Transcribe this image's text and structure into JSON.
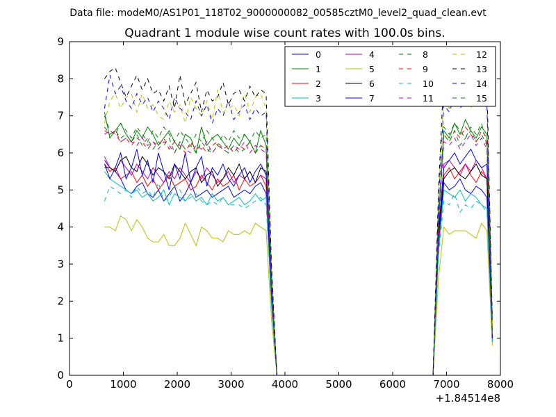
{
  "figure": {
    "suptitle": "Data file: modeM0/AS1P01_118T02_9000000082_00585cztM0_level2_quad_clean.evt"
  },
  "chart_data": {
    "type": "line",
    "title": "Quadrant 1 module wise count rates with 100.0s bins.",
    "xlabel": "",
    "ylabel": "",
    "x_offset_label": "+1.84514e8",
    "xlim": [
      0,
      8000
    ],
    "ylim": [
      0,
      9
    ],
    "xticks": [
      0,
      1000,
      2000,
      3000,
      4000,
      5000,
      6000,
      7000,
      8000
    ],
    "yticks": [
      0,
      1,
      2,
      3,
      4,
      5,
      6,
      7,
      8,
      9
    ],
    "legend_position": "top-right",
    "legend_columns": 4,
    "x": [
      650,
      750,
      850,
      950,
      1050,
      1150,
      1250,
      1350,
      1450,
      1550,
      1650,
      1750,
      1850,
      1950,
      2050,
      2150,
      2250,
      2350,
      2450,
      2550,
      2650,
      2750,
      2850,
      2950,
      3050,
      3150,
      3250,
      3350,
      3450,
      3550,
      3650,
      3750,
      3850,
      6750,
      6850,
      6950,
      7050,
      7150,
      7250,
      7350,
      7450,
      7550,
      7650,
      7750,
      7850
    ],
    "series": [
      {
        "name": "0",
        "color": "#0000ff",
        "dash": "solid",
        "values": [
          5.8,
          5.6,
          5.5,
          5.3,
          5.0,
          4.9,
          5.1,
          5.2,
          4.9,
          4.8,
          5.0,
          4.7,
          4.9,
          5.1,
          4.7,
          4.9,
          5.2,
          4.8,
          4.9,
          5.0,
          4.8,
          4.9,
          5.0,
          5.1,
          4.8,
          4.9,
          5.0,
          4.9,
          5.1,
          5.2,
          4.9,
          2.0,
          0.0,
          0.0,
          3.5,
          5.2,
          5.0,
          5.1,
          5.3,
          5.0,
          4.9,
          5.1,
          5.0,
          4.8,
          0.9
        ]
      },
      {
        "name": "1",
        "color": "#008000",
        "dash": "solid",
        "values": [
          7.1,
          6.4,
          6.6,
          6.8,
          6.5,
          6.3,
          6.6,
          6.4,
          6.7,
          6.5,
          6.2,
          6.4,
          6.6,
          6.3,
          6.1,
          6.5,
          6.4,
          6.0,
          6.7,
          6.2,
          6.4,
          6.5,
          6.3,
          6.1,
          6.4,
          6.2,
          6.5,
          6.3,
          6.0,
          6.6,
          6.2,
          2.5,
          0.0,
          0.0,
          4.2,
          6.6,
          6.4,
          6.8,
          6.5,
          6.9,
          6.6,
          6.4,
          6.7,
          6.5,
          1.2
        ]
      },
      {
        "name": "2",
        "color": "#ff0000",
        "dash": "solid",
        "values": [
          5.7,
          5.5,
          5.6,
          5.3,
          5.4,
          5.5,
          5.2,
          5.4,
          5.1,
          5.3,
          5.0,
          5.2,
          5.4,
          5.1,
          5.2,
          5.3,
          5.0,
          5.1,
          5.4,
          5.2,
          5.0,
          5.3,
          5.1,
          5.2,
          5.4,
          5.0,
          5.3,
          5.1,
          5.2,
          5.4,
          5.1,
          2.1,
          0.0,
          0.0,
          3.6,
          5.4,
          5.6,
          5.3,
          5.5,
          5.7,
          5.4,
          5.2,
          5.5,
          5.3,
          1.0
        ]
      },
      {
        "name": "3",
        "color": "#00bfbf",
        "dash": "solid",
        "values": [
          5.5,
          5.3,
          5.2,
          5.1,
          5.0,
          4.9,
          5.0,
          4.8,
          4.9,
          4.7,
          4.8,
          5.0,
          4.6,
          4.9,
          4.8,
          4.7,
          4.9,
          4.7,
          4.8,
          4.6,
          4.9,
          4.7,
          4.8,
          4.6,
          4.7,
          4.8,
          4.6,
          4.7,
          4.9,
          4.7,
          4.8,
          1.9,
          0.0,
          0.0,
          3.3,
          5.0,
          4.9,
          4.8,
          5.0,
          4.7,
          4.9,
          4.8,
          4.6,
          4.5,
          0.9
        ]
      },
      {
        "name": "4",
        "color": "#bf00bf",
        "dash": "solid",
        "values": [
          5.9,
          5.6,
          5.5,
          5.8,
          5.6,
          5.4,
          5.7,
          5.5,
          5.3,
          5.6,
          5.4,
          5.2,
          5.5,
          5.3,
          5.6,
          5.4,
          5.2,
          5.5,
          5.3,
          5.6,
          5.4,
          5.2,
          5.3,
          5.5,
          5.2,
          5.4,
          5.3,
          5.5,
          5.2,
          5.4,
          5.3,
          2.1,
          0.0,
          0.0,
          3.7,
          5.7,
          5.8,
          5.6,
          5.4,
          5.7,
          5.5,
          5.8,
          5.6,
          5.3,
          1.0
        ]
      },
      {
        "name": "5",
        "color": "#bfbf00",
        "dash": "solid",
        "values": [
          4.0,
          4.0,
          3.9,
          4.3,
          4.2,
          3.9,
          4.2,
          4.0,
          3.7,
          3.6,
          3.6,
          3.8,
          3.5,
          3.5,
          3.7,
          4.1,
          3.8,
          3.5,
          4.0,
          3.9,
          3.7,
          3.7,
          3.6,
          3.9,
          3.8,
          3.8,
          3.9,
          3.8,
          4.1,
          4.0,
          3.9,
          1.5,
          0.0,
          0.0,
          2.6,
          4.0,
          3.8,
          3.9,
          3.9,
          3.9,
          3.8,
          3.7,
          4.1,
          3.9,
          0.8
        ]
      },
      {
        "name": "6",
        "color": "#000000",
        "dash": "solid",
        "values": [
          5.6,
          5.6,
          5.5,
          5.8,
          5.9,
          5.6,
          5.5,
          5.9,
          5.7,
          5.4,
          5.6,
          5.5,
          5.3,
          5.7,
          5.5,
          5.3,
          5.5,
          5.6,
          5.2,
          5.4,
          5.5,
          5.1,
          5.3,
          5.6,
          5.4,
          5.7,
          5.3,
          5.5,
          5.2,
          5.6,
          5.5,
          2.2,
          0.0,
          0.0,
          3.8,
          5.3,
          5.5,
          5.6,
          5.4,
          5.3,
          5.5,
          5.7,
          5.4,
          5.3,
          1.0
        ]
      },
      {
        "name": "7",
        "color": "#0000ff",
        "dash": "solid",
        "values": [
          5.7,
          5.3,
          5.6,
          6.0,
          5.3,
          5.6,
          6.1,
          5.4,
          5.8,
          5.2,
          6.0,
          5.5,
          5.0,
          5.7,
          5.3,
          6.0,
          5.2,
          5.6,
          5.9,
          5.1,
          5.6,
          5.4,
          5.7,
          5.3,
          5.1,
          5.4,
          5.6,
          5.2,
          5.5,
          5.7,
          5.4,
          2.2,
          0.0,
          0.0,
          3.9,
          5.6,
          5.8,
          6.0,
          5.7,
          5.9,
          6.1,
          5.8,
          5.6,
          5.7,
          1.0
        ]
      },
      {
        "name": "8",
        "color": "#008000",
        "dash": "dashed",
        "values": [
          7.0,
          6.6,
          6.5,
          6.8,
          6.6,
          6.4,
          6.7,
          6.5,
          6.3,
          6.6,
          6.4,
          6.7,
          6.5,
          6.3,
          6.6,
          6.4,
          6.2,
          6.5,
          6.3,
          6.6,
          6.4,
          6.2,
          6.5,
          6.3,
          6.6,
          6.4,
          6.5,
          6.3,
          6.6,
          6.4,
          6.5,
          2.6,
          0.0,
          0.0,
          4.3,
          6.7,
          6.5,
          6.8,
          6.6,
          6.4,
          6.7,
          6.5,
          6.8,
          6.2,
          1.2
        ]
      },
      {
        "name": "9",
        "color": "#ff0000",
        "dash": "dashed",
        "values": [
          6.6,
          6.5,
          6.6,
          6.3,
          6.4,
          6.2,
          6.4,
          6.3,
          6.1,
          6.3,
          6.2,
          6.4,
          6.1,
          6.3,
          6.2,
          6.0,
          6.3,
          6.1,
          6.2,
          6.0,
          6.2,
          6.3,
          6.1,
          6.2,
          6.0,
          6.2,
          6.1,
          6.3,
          6.0,
          6.2,
          6.1,
          2.4,
          0.0,
          0.0,
          4.1,
          6.5,
          6.3,
          6.6,
          6.4,
          6.7,
          6.5,
          6.3,
          6.6,
          6.4,
          1.1
        ]
      },
      {
        "name": "10",
        "color": "#00bfbf",
        "dash": "dashed",
        "values": [
          4.7,
          5.1,
          5.0,
          4.9,
          5.0,
          4.8,
          5.1,
          4.9,
          5.0,
          4.8,
          5.2,
          4.7,
          4.8,
          5.1,
          5.0,
          4.7,
          4.8,
          4.9,
          4.7,
          4.6,
          4.7,
          4.6,
          4.8,
          4.6,
          4.6,
          4.6,
          4.5,
          4.6,
          4.7,
          4.8,
          4.6,
          1.9,
          0.0,
          0.0,
          3.2,
          4.7,
          4.6,
          4.9,
          4.4,
          4.6,
          4.5,
          4.7,
          4.6,
          4.4,
          0.9
        ]
      },
      {
        "name": "11",
        "color": "#bf00bf",
        "dash": "dashed",
        "values": [
          6.5,
          6.6,
          6.5,
          6.3,
          6.4,
          6.3,
          6.2,
          6.4,
          6.2,
          6.3,
          6.1,
          6.3,
          6.2,
          6.0,
          6.3,
          6.1,
          6.0,
          6.2,
          6.1,
          6.3,
          6.0,
          6.2,
          6.1,
          6.0,
          6.2,
          6.1,
          6.3,
          6.0,
          6.2,
          6.1,
          6.0,
          2.4,
          0.0,
          0.0,
          4.0,
          6.3,
          6.2,
          6.4,
          6.1,
          6.3,
          6.5,
          6.2,
          6.4,
          6.1,
          1.1
        ]
      },
      {
        "name": "12",
        "color": "#bfbf00",
        "dash": "dashed",
        "values": [
          6.8,
          7.4,
          7.6,
          7.2,
          7.5,
          7.6,
          7.1,
          7.6,
          7.2,
          7.3,
          7.0,
          6.9,
          7.4,
          7.1,
          7.3,
          6.8,
          7.5,
          7.2,
          7.0,
          7.4,
          6.9,
          7.7,
          7.1,
          7.2,
          7.3,
          7.0,
          7.6,
          7.1,
          7.5,
          7.6,
          7.2,
          2.9,
          0.0,
          0.0,
          4.8,
          7.5,
          7.2,
          7.7,
          7.3,
          7.6,
          7.2,
          7.5,
          7.8,
          7.6,
          1.4
        ]
      },
      {
        "name": "13",
        "color": "#000000",
        "dash": "dashed",
        "values": [
          8.0,
          8.2,
          8.3,
          7.9,
          7.5,
          7.8,
          8.1,
          7.7,
          8.0,
          7.6,
          7.7,
          7.4,
          7.8,
          7.2,
          8.1,
          7.3,
          7.6,
          7.9,
          7.1,
          7.7,
          7.4,
          7.5,
          7.9,
          7.3,
          7.6,
          7.7,
          7.4,
          7.8,
          7.5,
          7.7,
          7.6,
          3.0,
          0.0,
          0.0,
          5.0,
          8.1,
          7.7,
          7.9,
          7.6,
          8.0,
          7.8,
          7.6,
          7.7,
          7.9,
          1.5
        ]
      },
      {
        "name": "14",
        "color": "#0000ff",
        "dash": "dashed",
        "values": [
          7.2,
          8.1,
          7.6,
          7.8,
          7.4,
          7.2,
          7.6,
          7.3,
          7.5,
          7.1,
          7.4,
          7.2,
          6.9,
          7.5,
          7.2,
          7.1,
          6.9,
          7.4,
          7.0,
          7.3,
          6.8,
          7.2,
          7.0,
          7.4,
          6.9,
          7.1,
          7.3,
          6.9,
          7.2,
          7.0,
          7.1,
          2.8,
          0.0,
          0.0,
          4.7,
          7.3,
          7.1,
          7.5,
          7.2,
          7.4,
          7.6,
          7.3,
          7.5,
          7.3,
          1.4
        ]
      },
      {
        "name": "15",
        "color": "#008000",
        "dash": "dashed",
        "values": [
          6.7,
          6.5,
          6.6,
          6.4,
          6.5,
          6.3,
          6.5,
          6.2,
          6.4,
          6.1,
          6.3,
          6.2,
          6.4,
          6.0,
          6.3,
          6.1,
          6.2,
          6.0,
          6.3,
          6.1,
          6.0,
          6.2,
          6.1,
          6.0,
          6.2,
          6.0,
          6.1,
          6.3,
          6.0,
          6.2,
          6.1,
          2.4,
          0.0,
          0.0,
          4.1,
          6.5,
          6.3,
          6.6,
          6.2,
          6.4,
          6.6,
          6.3,
          6.5,
          6.2,
          1.1
        ]
      }
    ]
  }
}
